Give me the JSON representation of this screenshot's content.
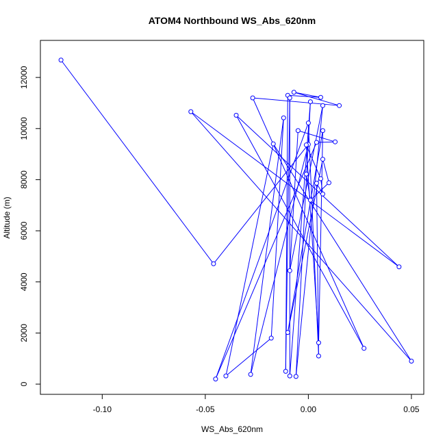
{
  "chart_data": {
    "type": "line",
    "title": "ATOM4 Northbound WS_Abs_620nm",
    "xlabel": "WS_Abs_620nm",
    "ylabel": "Altitude (m)",
    "xlim": [
      -0.13,
      0.056
    ],
    "ylim": [
      -400,
      13450
    ],
    "xticks": [
      -0.1,
      -0.05,
      0.0,
      0.05
    ],
    "xtick_labels": [
      "-0.10",
      "-0.05",
      "0.00",
      "0.05"
    ],
    "yticks": [
      0,
      2000,
      4000,
      6000,
      8000,
      10000,
      12000
    ],
    "ytick_labels": [
      "0",
      "2000",
      "4000",
      "6000",
      "8000",
      "10000",
      "12000"
    ],
    "grid": false,
    "series": [
      {
        "color": "#0000ff",
        "marker": "open-circle",
        "points": [
          {
            "x": -0.12,
            "y": 12680
          },
          {
            "x": -0.046,
            "y": 4710
          },
          {
            "x": 0.0,
            "y": 9380
          },
          {
            "x": -0.028,
            "y": 380
          },
          {
            "x": -0.012,
            "y": 10420
          },
          {
            "x": -0.018,
            "y": 1800
          },
          {
            "x": -0.04,
            "y": 320
          },
          {
            "x": -0.017,
            "y": 9400
          },
          {
            "x": 0.05,
            "y": 900
          },
          {
            "x": -0.057,
            "y": 10660
          },
          {
            "x": 0.044,
            "y": 4590
          },
          {
            "x": -0.035,
            "y": 10520
          },
          {
            "x": 0.027,
            "y": 1400
          },
          {
            "x": -0.027,
            "y": 11200
          },
          {
            "x": 0.015,
            "y": 10900
          },
          {
            "x": -0.007,
            "y": 11420
          },
          {
            "x": 0.006,
            "y": 11220
          },
          {
            "x": -0.01,
            "y": 11300
          },
          {
            "x": -0.011,
            "y": 500
          },
          {
            "x": -0.009,
            "y": 11200
          },
          {
            "x": -0.009,
            "y": 320
          },
          {
            "x": 0.001,
            "y": 11050
          },
          {
            "x": -0.006,
            "y": 300
          },
          {
            "x": 0.007,
            "y": 10900
          },
          {
            "x": -0.009,
            "y": 4440
          },
          {
            "x": -0.005,
            "y": 9920
          },
          {
            "x": 0.013,
            "y": 9480
          },
          {
            "x": 0.004,
            "y": 9460
          },
          {
            "x": -0.045,
            "y": 200
          },
          {
            "x": 0.0,
            "y": 10220
          },
          {
            "x": 0.005,
            "y": 1100
          },
          {
            "x": 0.004,
            "y": 7860
          },
          {
            "x": 0.007,
            "y": 7440
          },
          {
            "x": 0.006,
            "y": 8040
          },
          {
            "x": -0.001,
            "y": 9360
          },
          {
            "x": 0.005,
            "y": 1620
          },
          {
            "x": 0.007,
            "y": 9920
          },
          {
            "x": -0.01,
            "y": 2020
          },
          {
            "x": 0.007,
            "y": 8800
          },
          {
            "x": 0.01,
            "y": 7880
          },
          {
            "x": 0.001,
            "y": 7200
          },
          {
            "x": -0.001,
            "y": 8220
          }
        ]
      }
    ]
  }
}
